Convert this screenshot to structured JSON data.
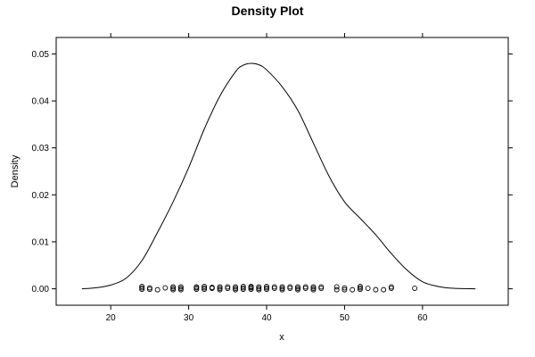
{
  "chart_data": {
    "type": "line",
    "title": "Density Plot",
    "xlabel": "x",
    "ylabel": "Density",
    "xlim": [
      13,
      71
    ],
    "ylim": [
      -0.0035,
      0.0535
    ],
    "x_ticks": [
      20,
      30,
      40,
      50,
      60
    ],
    "y_ticks": [
      0.0,
      0.01,
      0.02,
      0.03,
      0.04,
      0.05
    ],
    "x_tick_labels": [
      "20",
      "30",
      "40",
      "50",
      "60"
    ],
    "y_tick_labels": [
      "0.00",
      "0.01",
      "0.02",
      "0.03",
      "0.04",
      "0.05"
    ],
    "grid": false,
    "series": [
      {
        "type": "line",
        "x": [
          16.3,
          18,
          20,
          22,
          24,
          26,
          28,
          30,
          32,
          34,
          36,
          37,
          38,
          39,
          40,
          42,
          44,
          46,
          48,
          50,
          52,
          54,
          56,
          58,
          60,
          62,
          64,
          66.8
        ],
        "y": [
          0.0,
          0.0002,
          0.0008,
          0.0023,
          0.006,
          0.012,
          0.0185,
          0.0258,
          0.034,
          0.041,
          0.0462,
          0.0476,
          0.048,
          0.0477,
          0.0466,
          0.043,
          0.038,
          0.031,
          0.024,
          0.0185,
          0.015,
          0.0115,
          0.0075,
          0.004,
          0.0015,
          0.0005,
          0.0001,
          0.0
        ]
      },
      {
        "type": "rug",
        "x": [
          24,
          24,
          24,
          25,
          25,
          26,
          27,
          28,
          28,
          28,
          29,
          29,
          29,
          31,
          31,
          31,
          32,
          32,
          32,
          33,
          33,
          34,
          34,
          34,
          35,
          35,
          36,
          36,
          36,
          37,
          37,
          37,
          38,
          38,
          38,
          38,
          39,
          39,
          39,
          40,
          40,
          40,
          41,
          41,
          42,
          42,
          42,
          43,
          43,
          44,
          44,
          44,
          45,
          45,
          46,
          46,
          46,
          47,
          47,
          49,
          49,
          50,
          50,
          51,
          52,
          52,
          52,
          53,
          54,
          55,
          56,
          56,
          59
        ],
        "y": [
          0.0005,
          0.0002,
          -0.0001,
          0.0002,
          -0.0001,
          -0.0002,
          0.0002,
          0.0004,
          0.0001,
          -0.0002,
          0.0004,
          0.0001,
          -0.0002,
          0.0002,
          0.0004,
          -0.0001,
          0.0005,
          0.0002,
          -0.0001,
          0.0003,
          0.0001,
          0.0004,
          0.0001,
          -0.0002,
          0.0004,
          0.0001,
          0.0004,
          0.0001,
          -0.0002,
          0.0005,
          0.0002,
          -0.0001,
          0.0005,
          0.0002,
          -0.0001,
          0.0004,
          0.0004,
          0.0001,
          -0.0002,
          0.0005,
          0.0002,
          -0.0001,
          0.0004,
          0.0001,
          0.0004,
          0.0001,
          -0.0002,
          0.0004,
          0.0001,
          0.0004,
          0.0001,
          -0.0002,
          0.0004,
          0.0001,
          0.0004,
          0.0001,
          -0.0002,
          0.0004,
          0.0001,
          0.0004,
          -0.0002,
          0.0002,
          -0.0002,
          -0.0002,
          0.0005,
          0.0002,
          -0.0001,
          0.0001,
          -0.0002,
          -0.0002,
          0.0004,
          0.0001,
          0.0001
        ]
      }
    ]
  }
}
